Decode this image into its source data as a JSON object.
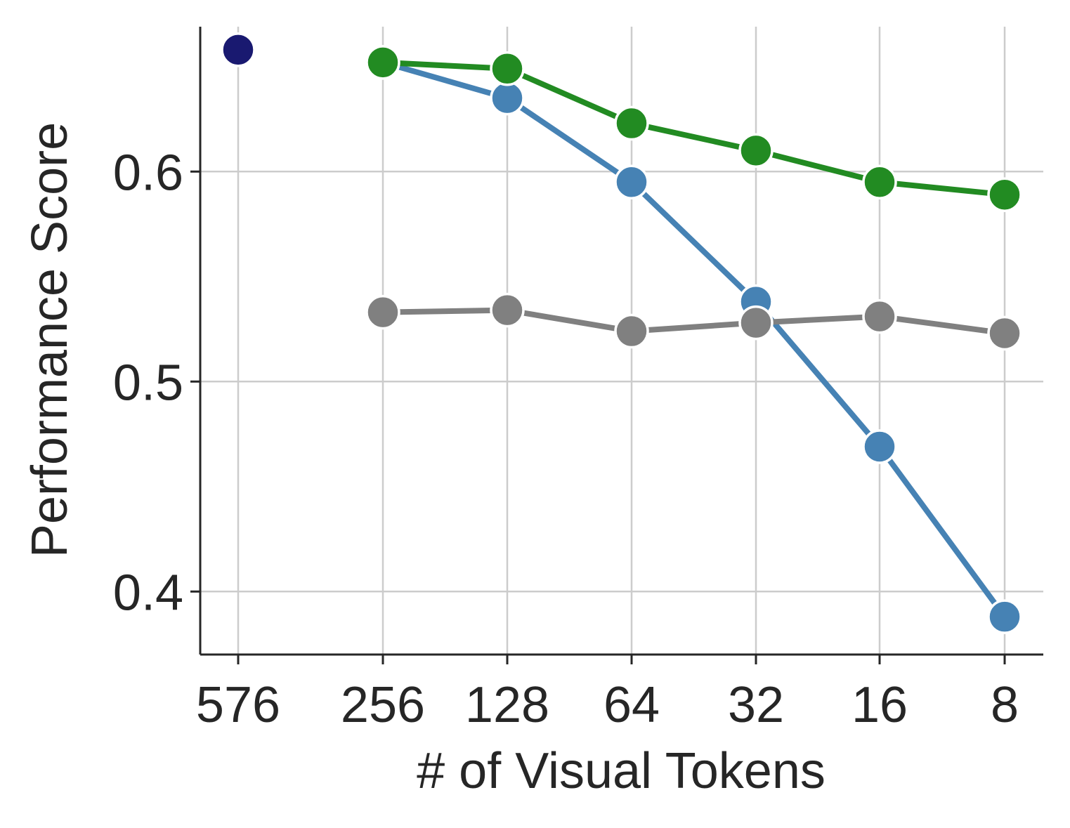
{
  "chart_data": {
    "type": "line",
    "xlabel": "# of Visual Tokens",
    "ylabel": "Performance Score",
    "categories": [
      "576",
      "256",
      "128",
      "64",
      "32",
      "16",
      "8"
    ],
    "ylim": [
      0.37,
      0.669
    ],
    "yticks": [
      "0.4",
      "0.5",
      "0.6"
    ],
    "grid": true,
    "legend": "none",
    "series": [
      {
        "color": "#4682b4",
        "values": [
          null,
          0.652,
          0.635,
          0.595,
          0.538,
          0.469,
          0.388
        ]
      },
      {
        "color": "#228b22",
        "values": [
          null,
          0.652,
          0.649,
          0.623,
          0.61,
          0.595,
          0.589
        ]
      },
      {
        "color": "#808080",
        "values": [
          null,
          0.533,
          0.534,
          0.524,
          0.528,
          0.531,
          0.523
        ]
      },
      {
        "color": "#191970",
        "values": [
          0.658,
          null,
          null,
          null,
          null,
          null,
          null
        ]
      }
    ]
  }
}
